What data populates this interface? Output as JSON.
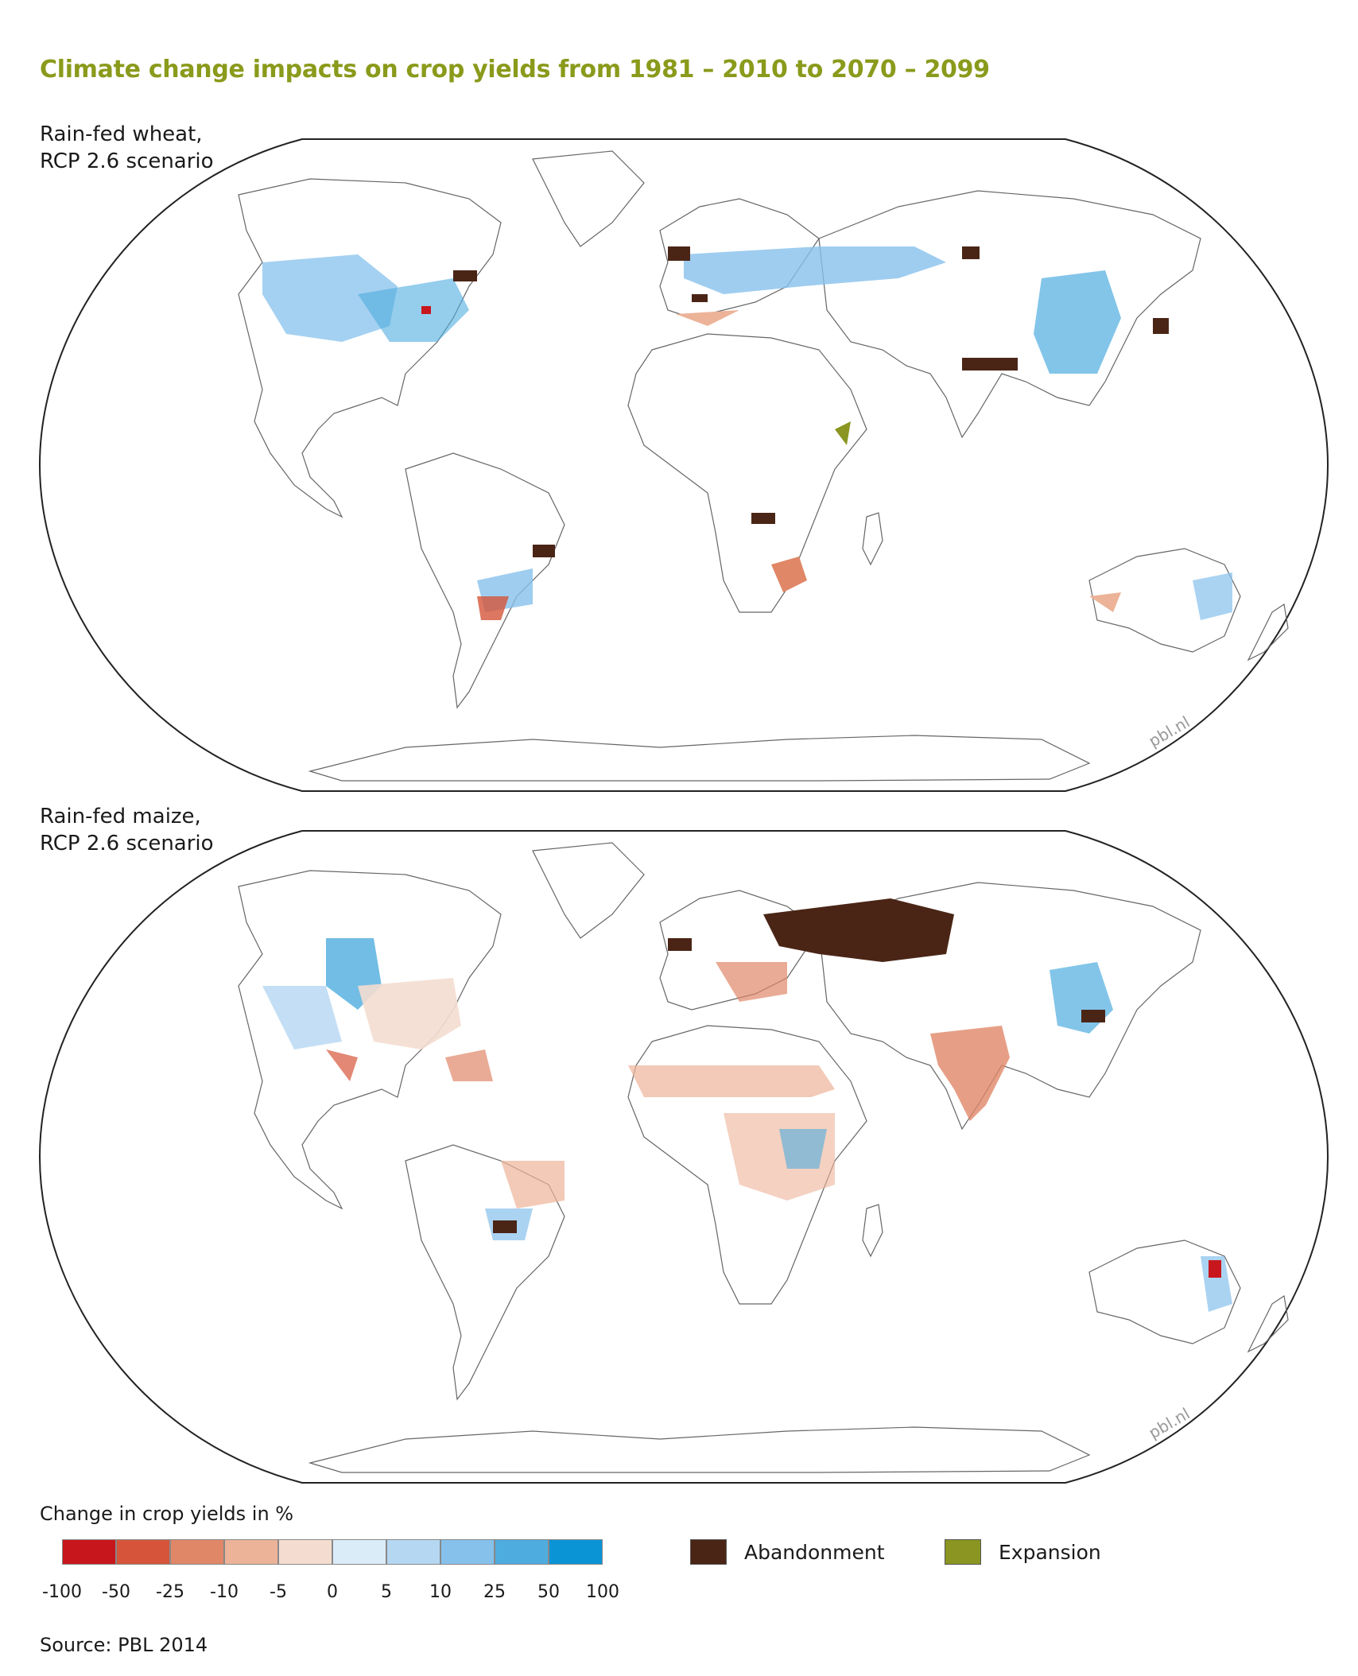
{
  "title": "Climate change impacts on crop yields from 1981 – 2010 to 2070 – 2099",
  "maps": [
    {
      "label_line1": "Rain-fed wheat,",
      "label_line2": "RCP 2.6 scenario",
      "watermark": "pbl.nl"
    },
    {
      "label_line1": "Rain-fed maize,",
      "label_line2": "RCP 2.6 scenario",
      "watermark": "pbl.nl"
    }
  ],
  "legend": {
    "title": "Change in crop yields in %",
    "scale_colors": [
      "#c8161d",
      "#d6553a",
      "#e08768",
      "#ecb398",
      "#f4ddd0",
      "#dbecf9",
      "#b5d7f2",
      "#86c1ec",
      "#4facdf",
      "#0a94d6"
    ],
    "tick_labels": [
      "-100",
      "-50",
      "-25",
      "-10",
      "-5",
      "0",
      "5",
      "10",
      "25",
      "50",
      "100"
    ],
    "abandonment": {
      "label": "Abandonment",
      "color": "#4a2516"
    },
    "expansion": {
      "label": "Expansion",
      "color": "#8a9621"
    }
  },
  "source": "Source: PBL 2014"
}
